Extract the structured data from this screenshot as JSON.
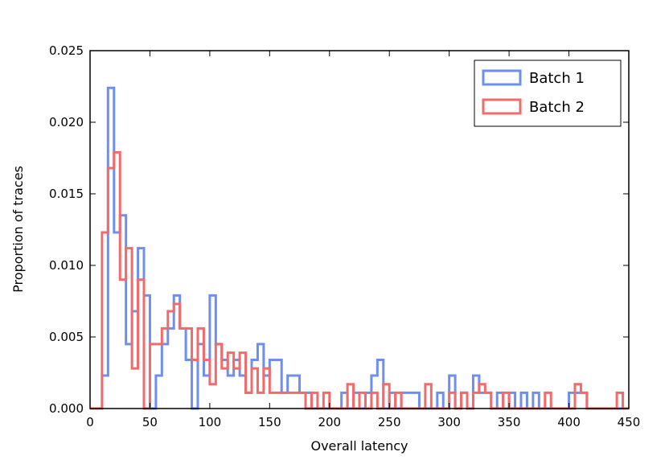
{
  "chart_data": {
    "type": "histogram",
    "xlabel": "Overall latency",
    "ylabel": "Proportion of traces",
    "xlim": [
      0,
      450
    ],
    "ylim": [
      0,
      0.025
    ],
    "x_ticks": [
      "0",
      "50",
      "100",
      "150",
      "200",
      "250",
      "300",
      "350",
      "400",
      "450"
    ],
    "y_ticks": [
      "0.000",
      "0.005",
      "0.010",
      "0.015",
      "0.020",
      "0.025"
    ],
    "grid": false,
    "legend_position": "top-right",
    "bin_width": 5,
    "series": [
      {
        "name": "Batch 1",
        "color": "#6d8ff0",
        "bins": [
          {
            "x": 10,
            "y": 0.0023
          },
          {
            "x": 15,
            "y": 0.0224
          },
          {
            "x": 20,
            "y": 0.0123
          },
          {
            "x": 25,
            "y": 0.0135
          },
          {
            "x": 30,
            "y": 0.0045
          },
          {
            "x": 35,
            "y": 0.0068
          },
          {
            "x": 40,
            "y": 0.0112
          },
          {
            "x": 45,
            "y": 0.0079
          },
          {
            "x": 55,
            "y": 0.0023
          },
          {
            "x": 60,
            "y": 0.0045
          },
          {
            "x": 65,
            "y": 0.0056
          },
          {
            "x": 70,
            "y": 0.0079
          },
          {
            "x": 75,
            "y": 0.0056
          },
          {
            "x": 80,
            "y": 0.0034
          },
          {
            "x": 90,
            "y": 0.0045
          },
          {
            "x": 95,
            "y": 0.0023
          },
          {
            "x": 100,
            "y": 0.0079
          },
          {
            "x": 105,
            "y": 0.0045
          },
          {
            "x": 110,
            "y": 0.0034
          },
          {
            "x": 115,
            "y": 0.0023
          },
          {
            "x": 120,
            "y": 0.0034
          },
          {
            "x": 125,
            "y": 0.0023
          },
          {
            "x": 130,
            "y": 0.0011
          },
          {
            "x": 135,
            "y": 0.0034
          },
          {
            "x": 140,
            "y": 0.0045
          },
          {
            "x": 145,
            "y": 0.0023
          },
          {
            "x": 150,
            "y": 0.0034
          },
          {
            "x": 155,
            "y": 0.0034
          },
          {
            "x": 160,
            "y": 0.0011
          },
          {
            "x": 165,
            "y": 0.0023
          },
          {
            "x": 170,
            "y": 0.0023
          },
          {
            "x": 175,
            "y": 0.0011
          },
          {
            "x": 180,
            "y": 0.0011
          },
          {
            "x": 210,
            "y": 0.0011
          },
          {
            "x": 220,
            "y": 0.0011
          },
          {
            "x": 230,
            "y": 0.0011
          },
          {
            "x": 235,
            "y": 0.0023
          },
          {
            "x": 240,
            "y": 0.0034
          },
          {
            "x": 250,
            "y": 0.0011
          },
          {
            "x": 260,
            "y": 0.0011
          },
          {
            "x": 265,
            "y": 0.0011
          },
          {
            "x": 270,
            "y": 0.0011
          },
          {
            "x": 290,
            "y": 0.0011
          },
          {
            "x": 300,
            "y": 0.0023
          },
          {
            "x": 310,
            "y": 0.0011
          },
          {
            "x": 320,
            "y": 0.0023
          },
          {
            "x": 325,
            "y": 0.0011
          },
          {
            "x": 330,
            "y": 0.0011
          },
          {
            "x": 340,
            "y": 0.0011
          },
          {
            "x": 350,
            "y": 0.0011
          },
          {
            "x": 360,
            "y": 0.0011
          },
          {
            "x": 370,
            "y": 0.0011
          },
          {
            "x": 400,
            "y": 0.0011
          },
          {
            "x": 405,
            "y": 0.0011
          },
          {
            "x": 410,
            "y": 0.0011
          }
        ]
      },
      {
        "name": "Batch 2",
        "color": "#f26b6b",
        "bins": [
          {
            "x": 10,
            "y": 0.0123
          },
          {
            "x": 15,
            "y": 0.0168
          },
          {
            "x": 20,
            "y": 0.0179
          },
          {
            "x": 25,
            "y": 0.009
          },
          {
            "x": 30,
            "y": 0.0112
          },
          {
            "x": 35,
            "y": 0.0028
          },
          {
            "x": 40,
            "y": 0.009
          },
          {
            "x": 50,
            "y": 0.0045
          },
          {
            "x": 55,
            "y": 0.0045
          },
          {
            "x": 60,
            "y": 0.0056
          },
          {
            "x": 65,
            "y": 0.0068
          },
          {
            "x": 70,
            "y": 0.0073
          },
          {
            "x": 75,
            "y": 0.0056
          },
          {
            "x": 80,
            "y": 0.0056
          },
          {
            "x": 85,
            "y": 0.0034
          },
          {
            "x": 90,
            "y": 0.0056
          },
          {
            "x": 95,
            "y": 0.0034
          },
          {
            "x": 100,
            "y": 0.0017
          },
          {
            "x": 105,
            "y": 0.0045
          },
          {
            "x": 110,
            "y": 0.0028
          },
          {
            "x": 115,
            "y": 0.0039
          },
          {
            "x": 120,
            "y": 0.0028
          },
          {
            "x": 125,
            "y": 0.0039
          },
          {
            "x": 130,
            "y": 0.0011
          },
          {
            "x": 135,
            "y": 0.0028
          },
          {
            "x": 140,
            "y": 0.0011
          },
          {
            "x": 145,
            "y": 0.0028
          },
          {
            "x": 150,
            "y": 0.0011
          },
          {
            "x": 155,
            "y": 0.0011
          },
          {
            "x": 160,
            "y": 0.0011
          },
          {
            "x": 165,
            "y": 0.0011
          },
          {
            "x": 170,
            "y": 0.0011
          },
          {
            "x": 175,
            "y": 0.0011
          },
          {
            "x": 185,
            "y": 0.0011
          },
          {
            "x": 195,
            "y": 0.0011
          },
          {
            "x": 215,
            "y": 0.0017
          },
          {
            "x": 225,
            "y": 0.0011
          },
          {
            "x": 235,
            "y": 0.0011
          },
          {
            "x": 245,
            "y": 0.0017
          },
          {
            "x": 255,
            "y": 0.0011
          },
          {
            "x": 280,
            "y": 0.0017
          },
          {
            "x": 300,
            "y": 0.0011
          },
          {
            "x": 310,
            "y": 0.0011
          },
          {
            "x": 320,
            "y": 0.0011
          },
          {
            "x": 325,
            "y": 0.0017
          },
          {
            "x": 330,
            "y": 0.0011
          },
          {
            "x": 345,
            "y": 0.0011
          },
          {
            "x": 380,
            "y": 0.0011
          },
          {
            "x": 405,
            "y": 0.0017
          },
          {
            "x": 410,
            "y": 0.0011
          },
          {
            "x": 440,
            "y": 0.0011
          }
        ]
      }
    ]
  }
}
